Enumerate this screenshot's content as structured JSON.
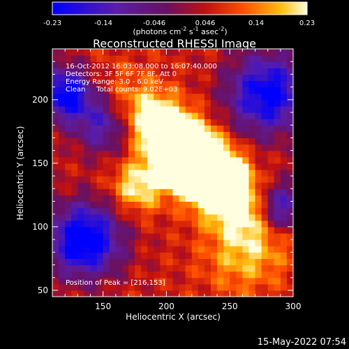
{
  "colorbar": {
    "ticks": [
      "-0.23",
      "-0.14",
      "-0.046",
      "0.046",
      "0.14",
      "0.23"
    ],
    "units_main": "(photons cm",
    "units_exp1": "-2",
    "units_s": " s",
    "units_exp2": "-1",
    "units_asec": " asec",
    "units_exp3": "-2",
    "units_close": ")"
  },
  "chart_data": {
    "type": "heatmap",
    "title": "Reconstructed RHESSI Image",
    "xlabel": "Heliocentric X (arcsec)",
    "ylabel": "Heliocentric Y (arcsec)",
    "xlim": [
      110,
      300
    ],
    "ylim": [
      45,
      240
    ],
    "xticks": [
      150,
      200,
      250,
      300
    ],
    "yticks": [
      50,
      100,
      150,
      200
    ],
    "value_range": [
      -0.23,
      0.23
    ],
    "colormap": "blue-purple-red-yellow-white",
    "peak_position": [
      216,
      153
    ],
    "info_lines": [
      "16-Oct-2012 16:03:08.000 to 16:07:40.000",
      "Detectors: 3F 5F 6F 7F 8F, Att 0",
      "Energy Range: 3.0 - 6.0 keV",
      "Clean     Total counts: 9.02E+03"
    ],
    "peak_label": "Position of Peak = [216,153]"
  },
  "footer": {
    "timestamp": "15-May-2022 07:54"
  }
}
